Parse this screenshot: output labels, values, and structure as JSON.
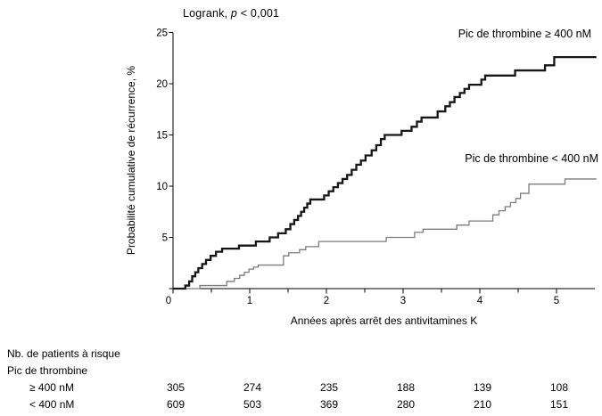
{
  "chart_data": {
    "type": "line",
    "subtype": "kaplan-meier-cumulative-incidence-steps",
    "annotation": {
      "prefix": "Logrank, ",
      "italic": "p",
      "suffix": " < 0,001"
    },
    "xlabel": "Années après arrêt des antivitamines K",
    "ylabel": "Probabilité cumulative de récurrence, %",
    "xlim": [
      0,
      5.5
    ],
    "ylim": [
      0,
      25
    ],
    "xticks": [
      0,
      1,
      2,
      3,
      4,
      5
    ],
    "xminorticks": [
      0.5,
      1.5,
      2.5,
      3.5,
      4.5
    ],
    "yticks": [
      5,
      10,
      15,
      20,
      25
    ],
    "origin_label": "0",
    "grid": false,
    "legend_position": "labels-on-plot",
    "series": [
      {
        "name": "Pic de thrombine ≥ 400 nM",
        "color": "#161616",
        "stroke_width": 2.3,
        "end_x": 5.52,
        "points": [
          [
            0,
            0
          ],
          [
            0.16,
            0.3
          ],
          [
            0.21,
            0.7
          ],
          [
            0.25,
            1.2
          ],
          [
            0.29,
            1.6
          ],
          [
            0.33,
            2.0
          ],
          [
            0.38,
            2.4
          ],
          [
            0.43,
            2.8
          ],
          [
            0.49,
            3.2
          ],
          [
            0.56,
            3.6
          ],
          [
            0.64,
            3.9
          ],
          [
            0.86,
            4.2
          ],
          [
            1.08,
            4.6
          ],
          [
            1.26,
            5.0
          ],
          [
            1.37,
            5.4
          ],
          [
            1.47,
            5.8
          ],
          [
            1.53,
            6.3
          ],
          [
            1.58,
            6.7
          ],
          [
            1.63,
            7.1
          ],
          [
            1.67,
            7.5
          ],
          [
            1.71,
            7.9
          ],
          [
            1.75,
            8.3
          ],
          [
            1.79,
            8.7
          ],
          [
            1.97,
            9.1
          ],
          [
            2.03,
            9.5
          ],
          [
            2.09,
            9.9
          ],
          [
            2.15,
            10.3
          ],
          [
            2.21,
            10.7
          ],
          [
            2.27,
            11.1
          ],
          [
            2.33,
            11.6
          ],
          [
            2.39,
            12.1
          ],
          [
            2.45,
            12.5
          ],
          [
            2.51,
            13.0
          ],
          [
            2.59,
            13.5
          ],
          [
            2.65,
            14.0
          ],
          [
            2.71,
            14.6
          ],
          [
            2.76,
            15.0
          ],
          [
            2.98,
            15.4
          ],
          [
            3.11,
            15.8
          ],
          [
            3.18,
            16.3
          ],
          [
            3.24,
            16.7
          ],
          [
            3.45,
            17.3
          ],
          [
            3.55,
            17.8
          ],
          [
            3.61,
            18.2
          ],
          [
            3.67,
            18.7
          ],
          [
            3.74,
            19.1
          ],
          [
            3.8,
            19.5
          ],
          [
            3.86,
            19.9
          ],
          [
            4.02,
            20.4
          ],
          [
            4.07,
            20.8
          ],
          [
            4.46,
            21.3
          ],
          [
            4.85,
            21.8
          ],
          [
            4.97,
            22.6
          ]
        ]
      },
      {
        "name": "Pic de thrombine < 400 nM",
        "color": "#7d7d7d",
        "stroke_width": 1.3,
        "end_x": 5.52,
        "points": [
          [
            0,
            0
          ],
          [
            0.35,
            0.3
          ],
          [
            0.7,
            0.7
          ],
          [
            0.8,
            1.0
          ],
          [
            0.87,
            1.3
          ],
          [
            0.93,
            1.6
          ],
          [
            0.99,
            1.9
          ],
          [
            1.05,
            2.1
          ],
          [
            1.11,
            2.3
          ],
          [
            1.44,
            3.2
          ],
          [
            1.51,
            3.5
          ],
          [
            1.65,
            3.8
          ],
          [
            1.73,
            4.1
          ],
          [
            1.9,
            4.6
          ],
          [
            2.78,
            5.0
          ],
          [
            3.15,
            5.5
          ],
          [
            3.26,
            5.8
          ],
          [
            3.7,
            6.2
          ],
          [
            3.86,
            6.6
          ],
          [
            4.17,
            7.2
          ],
          [
            4.25,
            7.6
          ],
          [
            4.33,
            8.0
          ],
          [
            4.4,
            8.4
          ],
          [
            4.47,
            8.8
          ],
          [
            4.53,
            9.3
          ],
          [
            4.64,
            10.2
          ],
          [
            5.11,
            10.7
          ]
        ]
      }
    ],
    "risk_table": {
      "header": "Nb. de patients à risque",
      "subheader": "Pic de thrombine",
      "time_points": [
        0,
        1,
        2,
        3,
        4,
        5
      ],
      "rows": [
        {
          "label": "≥ 400 nM",
          "values": [
            305,
            274,
            235,
            188,
            139,
            108
          ]
        },
        {
          "label": "< 400 nM",
          "values": [
            609,
            503,
            369,
            280,
            210,
            151
          ]
        }
      ]
    },
    "axis_color": "#000000"
  }
}
